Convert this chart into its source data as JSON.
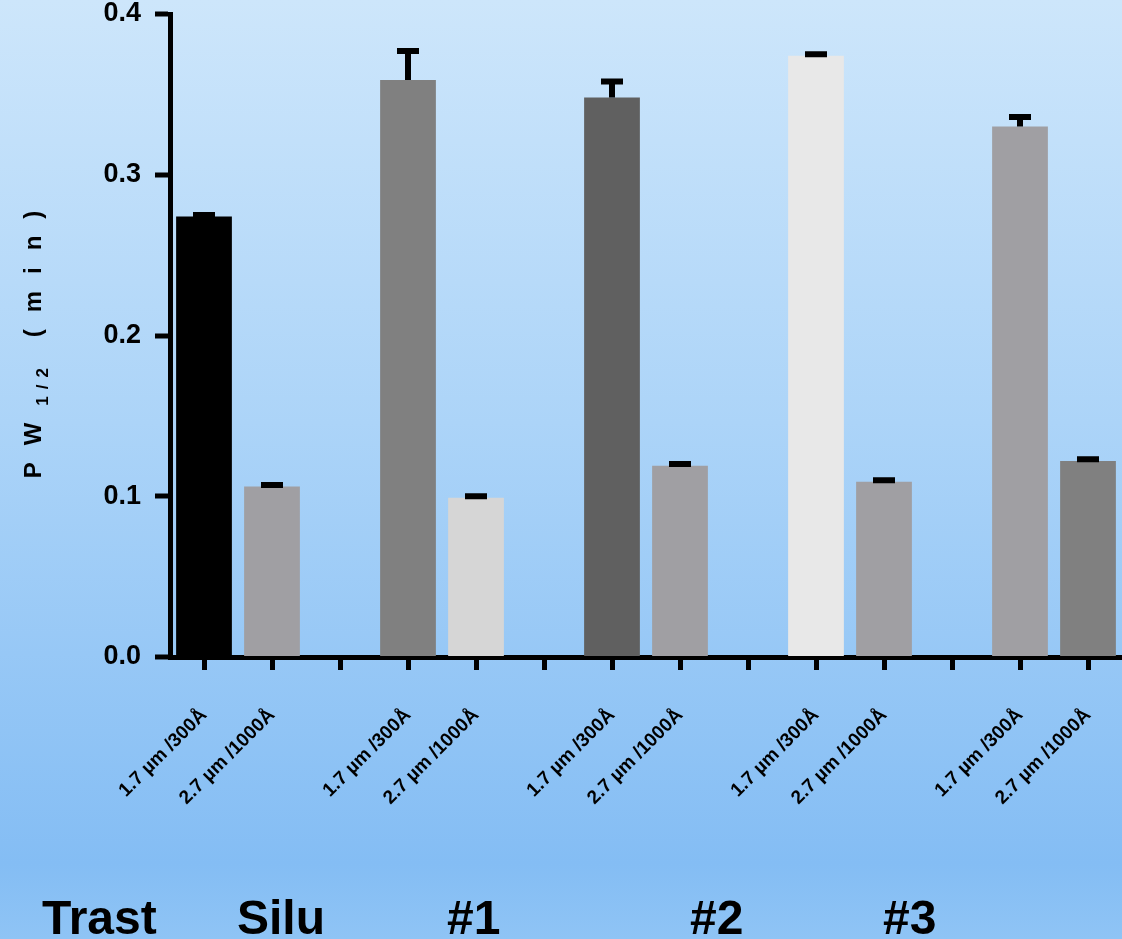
{
  "chart_data": {
    "type": "bar",
    "categories": [
      "1.7 µm /300Å",
      "2.7 µm /1000Å",
      null,
      "1.7 µm /300Å",
      "2.7 µm /1000Å",
      null,
      "1.7 µm /300Å",
      "2.7 µm /1000Å",
      null,
      "1.7 µm /300Å",
      "2.7 µm /1000Å",
      null,
      "1.7 µm /300Å",
      "2.7 µm /1000Å"
    ],
    "values": [
      0.274,
      0.106,
      null,
      0.359,
      0.099,
      null,
      0.348,
      0.119,
      null,
      0.374,
      0.109,
      null,
      0.33,
      0.122
    ],
    "colors": [
      "#000000",
      "#a09fa3",
      null,
      "#808080",
      "#d6d6d6",
      null,
      "#606060",
      "#a09fa3",
      null,
      "#e8e8e8",
      "#a09fa3",
      null,
      "#a09fa3",
      "#808080"
    ],
    "errors": [
      [
        0.274,
        0.275
      ],
      [
        0.106,
        0.107
      ],
      null,
      [
        0.359,
        0.377
      ],
      [
        0.099,
        0.1
      ],
      null,
      [
        0.348,
        0.358
      ],
      [
        0.119,
        0.12
      ],
      null,
      [
        0.374,
        0.375
      ],
      [
        0.109,
        0.11
      ],
      null,
      [
        0.33,
        0.336
      ],
      [
        0.122,
        0.123
      ]
    ],
    "ylabel": "PW$_{1/2}$ (min)",
    "ylim": [
      0,
      0.4
    ],
    "yticks": [
      {
        "value": 0,
        "label": "0.0"
      },
      0.1,
      0.2,
      0.3,
      0.4
    ],
    "grid": false,
    "annotations": [
      "Trast",
      "Silu",
      "#1",
      "#2",
      "#3"
    ]
  }
}
